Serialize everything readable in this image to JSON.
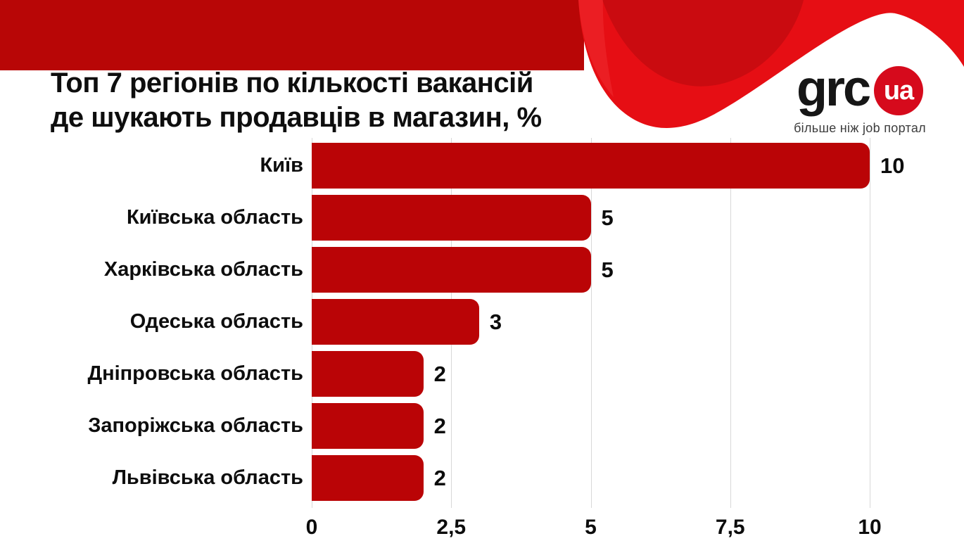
{
  "title": {
    "line1": "Топ 7 регіонів по кількості вакансій",
    "line2": "де шукають продавців в магазин, %"
  },
  "logo": {
    "text": "grc",
    "badge": "ua",
    "tagline": "більше ніж job портал"
  },
  "colors": {
    "band": "#b80606",
    "wave": "#e60e14",
    "wave_dark": "#8f0508",
    "bar": "#ba0406",
    "badge": "#d60a1c"
  },
  "chart_data": {
    "type": "bar",
    "orientation": "horizontal",
    "title": "Топ 7 регіонів по кількості вакансій де шукають продавців в магазин, %",
    "categories": [
      "Київ",
      "Київська область",
      "Харківська область",
      "Одеська область",
      "Дніпровська область",
      "Запоріжська область",
      "Львівська область"
    ],
    "values": [
      10,
      5,
      5,
      3,
      2,
      2,
      2
    ],
    "value_labels": [
      "10",
      "5",
      "5",
      "3",
      "2",
      "2",
      "2"
    ],
    "xlim": [
      0,
      10
    ],
    "x_ticks": [
      0,
      2.5,
      5,
      7.5,
      10
    ],
    "x_tick_labels": [
      "0",
      "2,5",
      "5",
      "7,5",
      "10"
    ],
    "grid": true,
    "legend": false,
    "bar_color": "#ba0406"
  }
}
